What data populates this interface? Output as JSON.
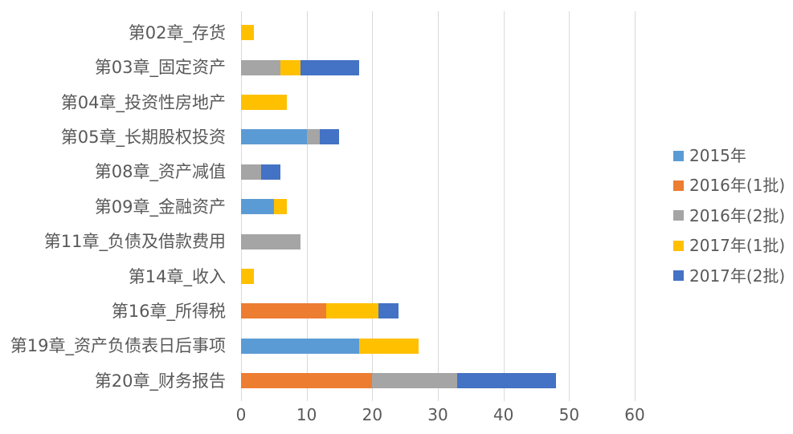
{
  "chart": {
    "background_color": "#FFFFFF",
    "text_color": "#595959",
    "gridline_color": "#D9D9D9"
  },
  "chart_data": {
    "type": "bar",
    "orientation": "horizontal",
    "stacked": true,
    "title": "",
    "xlabel": "",
    "ylabel": "",
    "xlim": [
      0,
      60
    ],
    "xticks": [
      0,
      10,
      20,
      30,
      40,
      50,
      60
    ],
    "grid": true,
    "legend_position": "right",
    "categories": [
      "第02章_存货",
      "第03章_固定资产",
      "第04章_投资性房地产",
      "第05章_长期股权投资",
      "第08章_资产减值",
      "第09章_金融资产",
      "第11章_负债及借款费用",
      "第14章_收入",
      "第16章_所得税",
      "第19章_资产负债表日后事项",
      "第20章_财务报告"
    ],
    "series": [
      {
        "name": "2015年",
        "color": "#5B9BD5",
        "values": [
          0,
          0,
          0,
          10,
          0,
          5,
          0,
          0,
          0,
          18,
          0
        ]
      },
      {
        "name": "2016年(1批)",
        "color": "#ED7D31",
        "values": [
          0,
          0,
          0,
          0,
          0,
          0,
          0,
          0,
          13,
          0,
          20
        ]
      },
      {
        "name": "2016年(2批)",
        "color": "#A5A5A5",
        "values": [
          0,
          6,
          0,
          2,
          3,
          0,
          9,
          0,
          0,
          0,
          13
        ]
      },
      {
        "name": "2017年(1批)",
        "color": "#FFC000",
        "values": [
          2,
          3,
          7,
          0,
          0,
          2,
          0,
          2,
          8,
          9,
          0
        ]
      },
      {
        "name": "2017年(2批)",
        "color": "#4472C4",
        "values": [
          0,
          9,
          0,
          3,
          3,
          0,
          0,
          0,
          3,
          0,
          15
        ]
      }
    ],
    "category_totals": [
      2,
      18,
      7,
      15,
      6,
      7,
      9,
      2,
      24,
      27,
      48
    ]
  }
}
